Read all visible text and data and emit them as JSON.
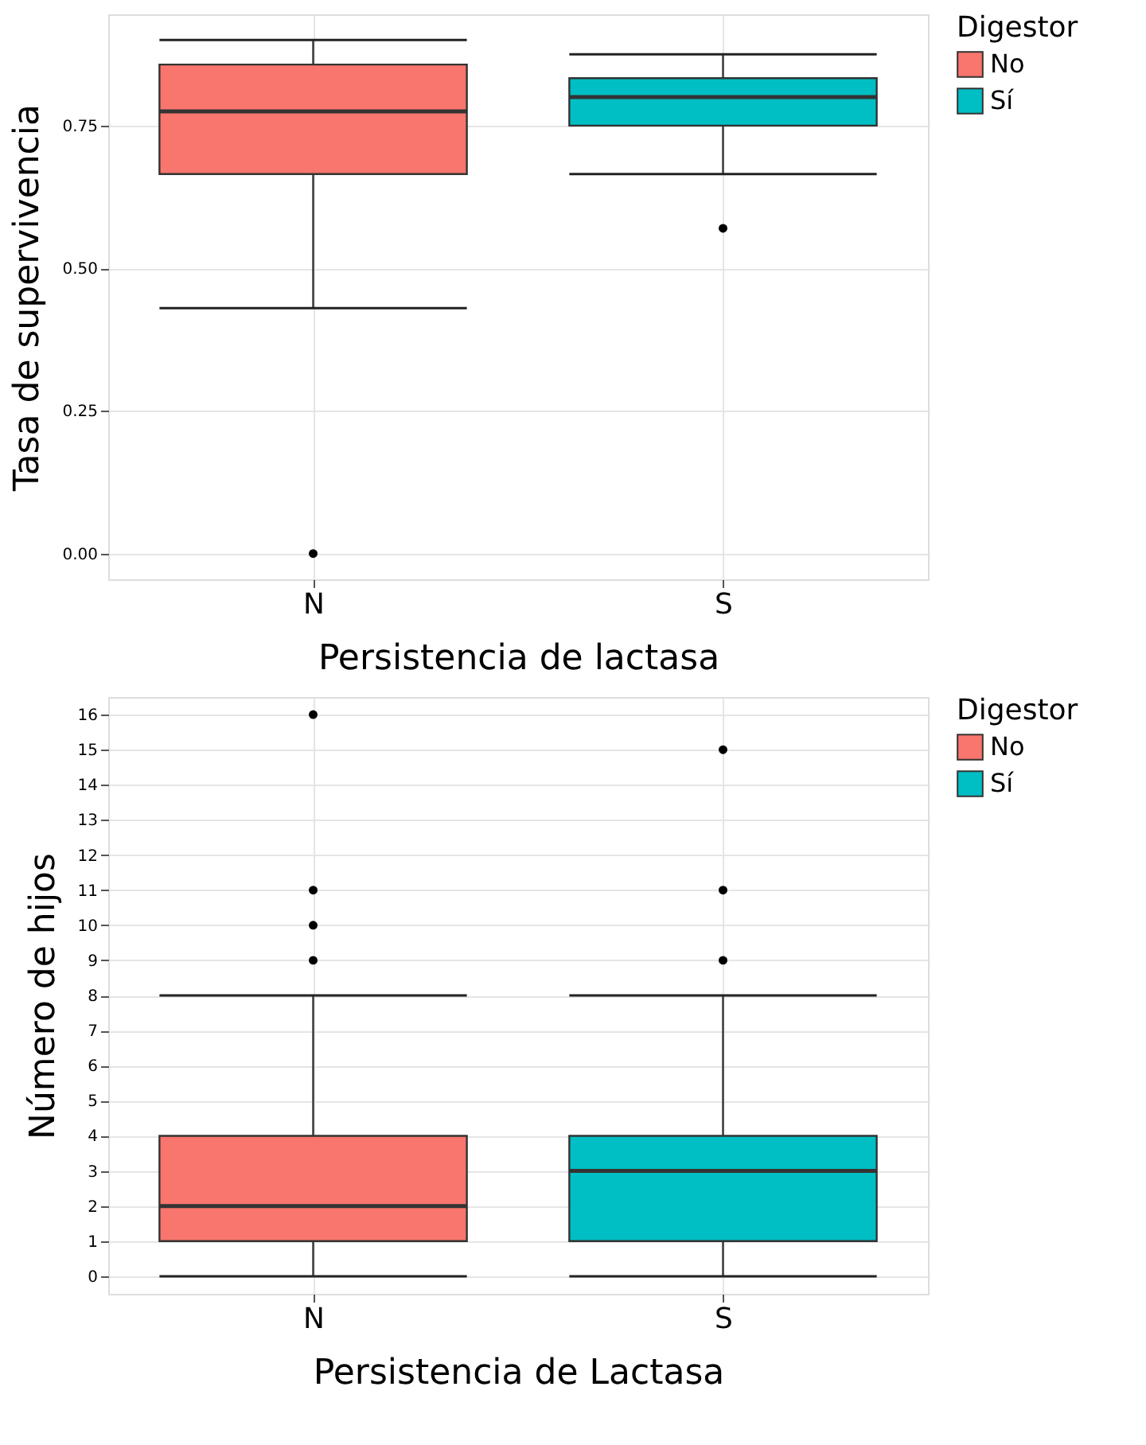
{
  "chart_data": [
    {
      "type": "box",
      "xlabel": "Persistencia de lactasa",
      "ylabel": "Tasa de supervivencia",
      "legend_title": "Digestor",
      "legend": "right",
      "grid": true,
      "categories": [
        "N",
        "S"
      ],
      "ylim": [
        -0.045,
        0.945
      ],
      "yticks": [
        {
          "value": 0,
          "label": "0.00"
        },
        0.25,
        {
          "value": 0.5,
          "label": "0.50"
        },
        0.75
      ],
      "series": [
        {
          "name": "No",
          "color": "#f8766d",
          "boxes": [
            {
              "low": 0.43,
              "q1": 0.665,
              "median": 0.775,
              "q3": 0.857,
              "high": 0.9,
              "outliers": [
                0
              ]
            },
            null
          ]
        },
        {
          "name": "Sí",
          "color": "#00bfc4",
          "boxes": [
            null,
            {
              "low": 0.665,
              "q1": 0.75,
              "median": 0.8,
              "q3": 0.833,
              "high": 0.875,
              "outliers": [
                0.57
              ]
            }
          ]
        }
      ]
    },
    {
      "type": "box",
      "xlabel": "Persistencia de Lactasa",
      "ylabel": "Número de hijos",
      "legend_title": "Digestor",
      "legend": "right",
      "grid": true,
      "categories": [
        "N",
        "S"
      ],
      "ylim": [
        -0.5,
        16.5
      ],
      "yticks": [
        0,
        1,
        2,
        3,
        4,
        5,
        6,
        7,
        8,
        9,
        10,
        11,
        12,
        13,
        14,
        15,
        16
      ],
      "series": [
        {
          "name": "No",
          "color": "#f8766d",
          "boxes": [
            {
              "low": 0,
              "q1": 1,
              "median": 2,
              "q3": 4,
              "high": 8,
              "outliers": [
                9,
                10,
                11,
                16
              ]
            },
            null
          ]
        },
        {
          "name": "Sí",
          "color": "#00bfc4",
          "boxes": [
            null,
            {
              "low": 0,
              "q1": 1,
              "median": 3,
              "q3": 4,
              "high": 8,
              "outliers": [
                9,
                11,
                15
              ]
            }
          ]
        }
      ]
    }
  ]
}
